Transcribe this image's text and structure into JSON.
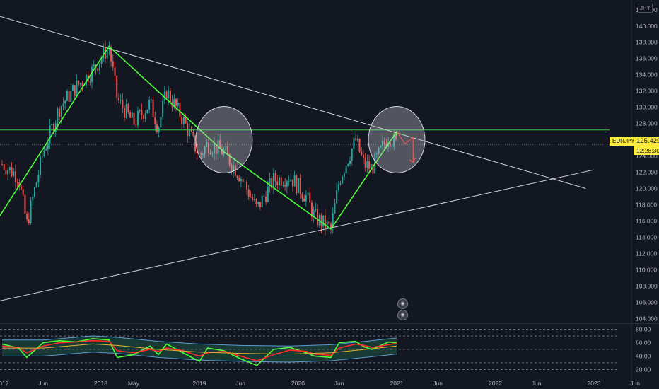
{
  "chart_data": [
    {
      "type": "line",
      "subtype": "candlestick",
      "symbol": "EURJPY",
      "currency": "JPY",
      "last_price": "125.429",
      "countdown": "12:28:30",
      "x_tick_labels": [
        "2017",
        "Jun",
        "2018",
        "May",
        "2019",
        "Jun",
        "2020",
        "Jun",
        "2021",
        "Jun",
        "2022",
        "Jun",
        "2023",
        "Jun"
      ],
      "y_tick_labels": [
        "104.000",
        "106.000",
        "108.000",
        "110.000",
        "112.000",
        "114.000",
        "116.000",
        "118.000",
        "120.000",
        "122.000",
        "124.000",
        "126.000",
        "128.000",
        "130.000",
        "132.000",
        "134.000",
        "136.000",
        "138.000",
        "140.000",
        "142.000"
      ],
      "ylim": [
        103.5,
        143.2
      ],
      "x_range": [
        "2017-01",
        "2023-07"
      ],
      "series": [
        {
          "values": [
            {
              "x": "2017-01",
              "y": 123.0
            },
            {
              "x": "2017-03",
              "y": 121.5
            },
            {
              "x": "2017-04",
              "y": 115.5
            },
            {
              "x": "2017-06",
              "y": 124.5
            },
            {
              "x": "2017-08",
              "y": 130.0
            },
            {
              "x": "2017-10",
              "y": 132.5
            },
            {
              "x": "2017-12",
              "y": 134.5
            },
            {
              "x": "2018-02",
              "y": 137.5
            },
            {
              "x": "2018-03",
              "y": 131.0
            },
            {
              "x": "2018-05",
              "y": 128.0
            },
            {
              "x": "2018-07",
              "y": 130.5
            },
            {
              "x": "2018-08",
              "y": 127.5
            },
            {
              "x": "2018-09",
              "y": 132.0
            },
            {
              "x": "2018-11",
              "y": 128.5
            },
            {
              "x": "2019-01",
              "y": 124.0
            },
            {
              "x": "2019-02",
              "y": 125.5
            },
            {
              "x": "2019-04",
              "y": 124.5
            },
            {
              "x": "2019-06",
              "y": 121.5
            },
            {
              "x": "2019-08",
              "y": 117.5
            },
            {
              "x": "2019-10",
              "y": 121.0
            },
            {
              "x": "2019-12",
              "y": 121.5
            },
            {
              "x": "2020-02",
              "y": 119.0
            },
            {
              "x": "2020-03",
              "y": 116.5
            },
            {
              "x": "2020-05",
              "y": 115.0
            },
            {
              "x": "2020-06",
              "y": 121.0
            },
            {
              "x": "2020-08",
              "y": 126.0
            },
            {
              "x": "2020-09",
              "y": 123.0
            },
            {
              "x": "2020-10",
              "y": 122.5
            },
            {
              "x": "2020-12",
              "y": 126.5
            },
            {
              "x": "2021-01",
              "y": 125.4
            }
          ]
        }
      ],
      "levels": {
        "resistance_top": 127.2,
        "resistance_bottom": 126.7,
        "last": 125.429
      },
      "trendlines": [
        {
          "kind": "descending",
          "from": {
            "x": "2016-10",
            "y": 142.0
          },
          "to": {
            "x": "2022-12",
            "y": 120.0
          }
        },
        {
          "kind": "ascending",
          "from": {
            "x": "2016-12",
            "y": 106.0
          },
          "to": {
            "x": "2023-01",
            "y": 122.3
          }
        }
      ],
      "zigzag": [
        {
          "x": "2016-12",
          "y": 115.5
        },
        {
          "x": "2018-02",
          "y": 137.5
        },
        {
          "x": "2019-04",
          "y": 124.5
        },
        {
          "x": "2020-05",
          "y": 115.0
        },
        {
          "x": "2021-01",
          "y": 127.0
        },
        {
          "x": "2021-01",
          "y": 126.5
        }
      ],
      "projection": [
        {
          "x": "2021-01",
          "y": 127.0
        },
        {
          "x": "2021-02",
          "y": 125.5
        },
        {
          "x": "2021-03",
          "y": 126.3
        },
        {
          "x": "2021-03",
          "y": 123.2
        }
      ],
      "highlight_circles": [
        {
          "x": "2019-04",
          "y": 126.0
        },
        {
          "x": "2021-01",
          "y": 126.0
        }
      ],
      "colors": {
        "background": "#131722",
        "zigzag": "#4cff39",
        "trendline": "#d1d4dc",
        "resistance": "#2ecc40",
        "projection": "#ff1e1e",
        "up": "#26a69a",
        "down": "#ef5350",
        "price_tag": "#ffeb3b"
      }
    },
    {
      "type": "line",
      "subtype": "rsi",
      "y_tick_labels": [
        "20.00",
        "40.00",
        "60.00",
        "80.00"
      ],
      "ylim": [
        12,
        88
      ],
      "levels": [
        80,
        70,
        50,
        30,
        20
      ],
      "series": [
        {
          "name_hidden": true,
          "color": "#4cff39",
          "values": [
            {
              "x": "2017-01",
              "y": 58
            },
            {
              "x": "2017-03",
              "y": 52
            },
            {
              "x": "2017-04",
              "y": 38
            },
            {
              "x": "2017-06",
              "y": 60
            },
            {
              "x": "2017-08",
              "y": 63
            },
            {
              "x": "2017-10",
              "y": 61
            },
            {
              "x": "2017-12",
              "y": 66
            },
            {
              "x": "2018-02",
              "y": 64
            },
            {
              "x": "2018-03",
              "y": 38
            },
            {
              "x": "2018-05",
              "y": 42
            },
            {
              "x": "2018-07",
              "y": 55
            },
            {
              "x": "2018-08",
              "y": 42
            },
            {
              "x": "2018-09",
              "y": 58
            },
            {
              "x": "2018-11",
              "y": 45
            },
            {
              "x": "2019-01",
              "y": 32
            },
            {
              "x": "2019-02",
              "y": 52
            },
            {
              "x": "2019-04",
              "y": 48
            },
            {
              "x": "2019-06",
              "y": 36
            },
            {
              "x": "2019-08",
              "y": 26
            },
            {
              "x": "2019-10",
              "y": 50
            },
            {
              "x": "2019-12",
              "y": 53
            },
            {
              "x": "2020-02",
              "y": 45
            },
            {
              "x": "2020-03",
              "y": 40
            },
            {
              "x": "2020-05",
              "y": 38
            },
            {
              "x": "2020-06",
              "y": 60
            },
            {
              "x": "2020-08",
              "y": 62
            },
            {
              "x": "2020-09",
              "y": 54
            },
            {
              "x": "2020-10",
              "y": 50
            },
            {
              "x": "2020-12",
              "y": 61
            },
            {
              "x": "2021-01",
              "y": 60
            }
          ]
        },
        {
          "name_hidden": true,
          "color": "#ff2a2a",
          "values": [
            {
              "x": "2017-01",
              "y": 55
            },
            {
              "x": "2017-03",
              "y": 53
            },
            {
              "x": "2017-04",
              "y": 45
            },
            {
              "x": "2017-06",
              "y": 55
            },
            {
              "x": "2017-08",
              "y": 60
            },
            {
              "x": "2017-10",
              "y": 61
            },
            {
              "x": "2017-12",
              "y": 63
            },
            {
              "x": "2018-02",
              "y": 62
            },
            {
              "x": "2018-03",
              "y": 48
            },
            {
              "x": "2018-05",
              "y": 45
            },
            {
              "x": "2018-07",
              "y": 50
            },
            {
              "x": "2018-08",
              "y": 47
            },
            {
              "x": "2018-09",
              "y": 52
            },
            {
              "x": "2018-11",
              "y": 48
            },
            {
              "x": "2019-01",
              "y": 40
            },
            {
              "x": "2019-02",
              "y": 45
            },
            {
              "x": "2019-04",
              "y": 47
            },
            {
              "x": "2019-06",
              "y": 40
            },
            {
              "x": "2019-08",
              "y": 33
            },
            {
              "x": "2019-10",
              "y": 42
            },
            {
              "x": "2019-12",
              "y": 49
            },
            {
              "x": "2020-02",
              "y": 47
            },
            {
              "x": "2020-03",
              "y": 43
            },
            {
              "x": "2020-05",
              "y": 41
            },
            {
              "x": "2020-06",
              "y": 52
            },
            {
              "x": "2020-08",
              "y": 58
            },
            {
              "x": "2020-09",
              "y": 56
            },
            {
              "x": "2020-10",
              "y": 53
            },
            {
              "x": "2020-12",
              "y": 57
            },
            {
              "x": "2021-01",
              "y": 59
            }
          ]
        },
        {
          "name_hidden": true,
          "color": "#e6b333",
          "values": [
            {
              "x": "2017-01",
              "y": 52
            },
            {
              "x": "2017-06",
              "y": 52
            },
            {
              "x": "2017-12",
              "y": 58
            },
            {
              "x": "2018-03",
              "y": 56
            },
            {
              "x": "2018-08",
              "y": 50
            },
            {
              "x": "2019-01",
              "y": 46
            },
            {
              "x": "2019-06",
              "y": 44
            },
            {
              "x": "2019-12",
              "y": 43
            },
            {
              "x": "2020-05",
              "y": 45
            },
            {
              "x": "2020-10",
              "y": 51
            },
            {
              "x": "2021-01",
              "y": 55
            }
          ]
        }
      ]
    }
  ],
  "ui": {
    "symbol_tag": "EURJPY",
    "currency_label": "JPY"
  }
}
